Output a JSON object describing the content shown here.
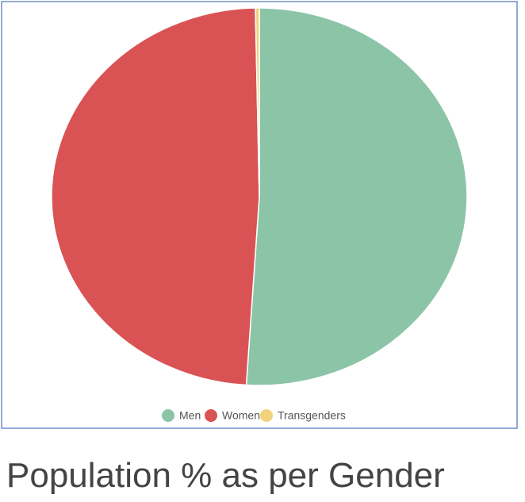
{
  "chart_data": {
    "type": "pie",
    "title": "Population % as per Gender",
    "categories": [
      "Men",
      "Women",
      "Transgenders"
    ],
    "values": [
      51,
      48.7,
      0.3
    ],
    "colors": [
      "#8cc4a8",
      "#d95355",
      "#f2d27a"
    ],
    "legend": "bottom"
  }
}
